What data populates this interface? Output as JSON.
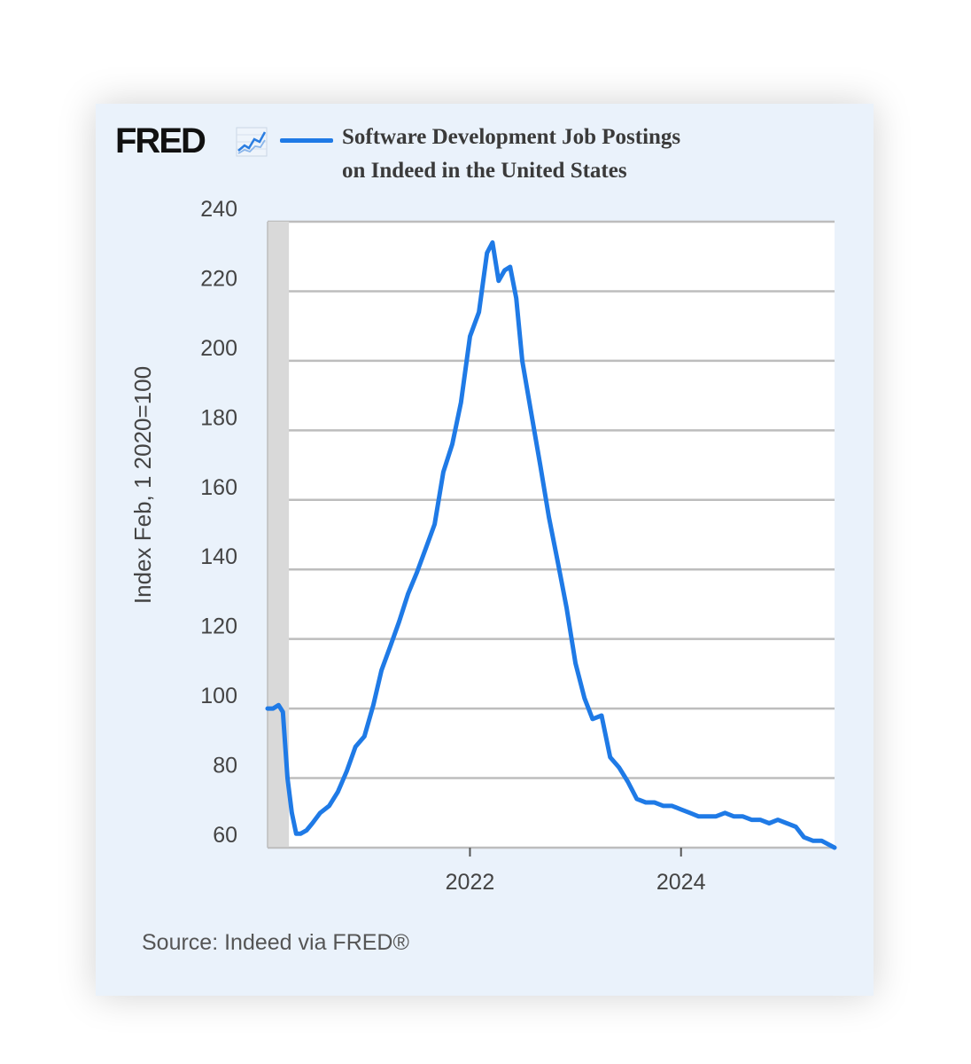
{
  "header": {
    "logo_text": "FRED",
    "logo_icon": "line-chart-icon",
    "title_line1": "Software Development Job Postings",
    "title_line2": "on Indeed in the United States"
  },
  "source_text": "Source: Indeed via FRED®",
  "colors": {
    "series": "#1f7ae6",
    "background": "#eaf2fb",
    "plot_background": "#ffffff",
    "grid": "#bdbdbd",
    "recession_band": "#d9d9d9"
  },
  "chart_data": {
    "type": "line",
    "title": "Software Development Job Postings on Indeed in the United States",
    "ylabel": "Index Feb, 1 2020=100",
    "xlabel": "",
    "ylim": [
      60,
      240
    ],
    "xlim": [
      "2020-02-01",
      "2025-06-15"
    ],
    "yticks": [
      60,
      80,
      100,
      120,
      140,
      160,
      180,
      200,
      220,
      240
    ],
    "xticks": [
      {
        "label": "2022",
        "date": "2022-01-01"
      },
      {
        "label": "2024",
        "date": "2024-01-01"
      }
    ],
    "grid": true,
    "recession_band": {
      "start": "2020-02-01",
      "end": "2020-04-15"
    },
    "series": [
      {
        "name": "Software Development Job Postings on Indeed in the United States",
        "x": [
          "2020-02-01",
          "2020-02-20",
          "2020-03-10",
          "2020-03-25",
          "2020-04-10",
          "2020-04-25",
          "2020-05-10",
          "2020-05-25",
          "2020-06-15",
          "2020-07-05",
          "2020-08-01",
          "2020-09-01",
          "2020-10-01",
          "2020-11-01",
          "2020-12-01",
          "2021-01-01",
          "2021-02-01",
          "2021-03-01",
          "2021-04-01",
          "2021-05-01",
          "2021-06-01",
          "2021-07-01",
          "2021-08-01",
          "2021-09-01",
          "2021-10-01",
          "2021-11-01",
          "2021-12-01",
          "2022-01-01",
          "2022-02-01",
          "2022-03-01",
          "2022-03-20",
          "2022-04-10",
          "2022-05-01",
          "2022-05-20",
          "2022-06-10",
          "2022-07-01",
          "2022-08-01",
          "2022-09-01",
          "2022-10-01",
          "2022-11-01",
          "2022-12-01",
          "2023-01-01",
          "2023-02-01",
          "2023-03-01",
          "2023-04-01",
          "2023-05-01",
          "2023-06-01",
          "2023-07-01",
          "2023-08-01",
          "2023-09-01",
          "2023-10-01",
          "2023-11-01",
          "2023-12-01",
          "2024-01-01",
          "2024-02-01",
          "2024-03-01",
          "2024-04-01",
          "2024-05-01",
          "2024-06-01",
          "2024-07-01",
          "2024-08-01",
          "2024-09-01",
          "2024-10-01",
          "2024-11-01",
          "2024-12-01",
          "2025-01-01",
          "2025-02-01",
          "2025-03-01",
          "2025-04-01",
          "2025-05-01",
          "2025-06-15"
        ],
        "y": [
          100,
          100,
          101,
          99,
          80,
          70,
          64,
          64,
          65,
          67,
          70,
          72,
          76,
          82,
          89,
          92,
          101,
          111,
          118,
          125,
          133,
          139,
          146,
          153,
          168,
          176,
          188,
          207,
          214,
          231,
          234,
          223,
          226,
          227,
          218,
          200,
          185,
          170,
          155,
          142,
          129,
          113,
          103,
          97,
          98,
          86,
          83,
          79,
          74,
          73,
          73,
          72,
          72,
          71,
          70,
          69,
          69,
          69,
          70,
          69,
          69,
          68,
          68,
          67,
          68,
          67,
          66,
          63,
          62,
          62,
          60
        ]
      }
    ]
  }
}
